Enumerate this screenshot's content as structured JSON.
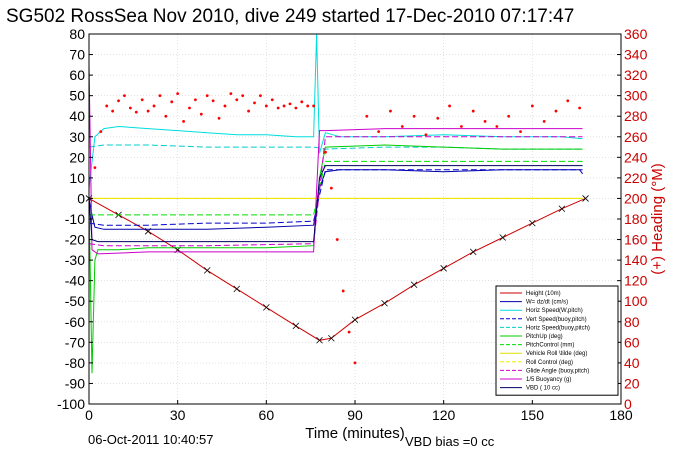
{
  "chart_data": {
    "type": "line",
    "title": "SG502 RossSea Nov 2010, dive 249 started 17-Dec-2010 07:17:47",
    "xlabel": "Time (minutes)",
    "ylabel_right": "(+) Heading (°M)",
    "footer_left": "06-Oct-2011 10:40:57",
    "footer_right": "VBD bias =0 cc",
    "xlim": [
      0,
      180
    ],
    "ylim_left": [
      -100,
      80
    ],
    "ylim_right": [
      0,
      360
    ],
    "x_ticks": [
      0,
      30,
      60,
      90,
      120,
      150,
      180
    ],
    "y_left_ticks": [
      80,
      70,
      60,
      50,
      40,
      30,
      20,
      10,
      0,
      -10,
      -20,
      -30,
      -40,
      -50,
      -60,
      -70,
      -80,
      -90,
      -100
    ],
    "y_right_ticks": [
      360,
      340,
      320,
      300,
      280,
      260,
      240,
      220,
      200,
      180,
      160,
      140,
      120,
      100,
      80,
      60,
      40,
      20,
      0
    ],
    "legend_position": "bottom-right",
    "colors": {
      "height": "#cc0000",
      "w": "#0000aa",
      "horiz_speed": "#00dddd",
      "vert_speed_buoy": "#0000cc",
      "horiz_speed_buoy": "#00cccc",
      "pitch_up": "#00cc00",
      "pitch_control": "#00dd00",
      "vehicle_roll": "#dddd00",
      "roll_control": "#eeee00",
      "glide_angle": "#cc00cc",
      "buoyancy": "#cc00cc",
      "vbd": "#000066",
      "heading": "#ff0000",
      "right_axis": "#cc0000"
    },
    "series": [
      {
        "key": "height",
        "name": "Height (10m)",
        "style": "solid",
        "markers": "x",
        "x": [
          0,
          10,
          20,
          30,
          40,
          50,
          60,
          70,
          78,
          82,
          90,
          100,
          110,
          120,
          130,
          140,
          150,
          160,
          168
        ],
        "y": [
          0,
          -8,
          -16,
          -25,
          -35,
          -44,
          -53,
          -62,
          -69,
          -68,
          -59,
          -51,
          -42,
          -34,
          -26,
          -19,
          -12,
          -5,
          0
        ]
      },
      {
        "key": "w",
        "name": "W= dz/dt (cm/s)",
        "style": "solid",
        "x": [
          0,
          1,
          2,
          5,
          20,
          40,
          60,
          76,
          78,
          80,
          85,
          100,
          120,
          140,
          160,
          166,
          167
        ],
        "y": [
          0,
          -8,
          -14,
          -15,
          -15,
          -15,
          -14,
          -13,
          5,
          13,
          14,
          14,
          13,
          14,
          14,
          14,
          12
        ]
      },
      {
        "key": "horiz_speed",
        "name": "Horiz Speed(W,pitch)",
        "style": "solid",
        "x": [
          0,
          2,
          5,
          10,
          20,
          30,
          40,
          50,
          60,
          70,
          76,
          77,
          78,
          80,
          85,
          100,
          120,
          140,
          160,
          167
        ],
        "y": [
          5,
          30,
          34,
          35,
          34,
          33,
          32,
          31,
          31,
          30,
          30,
          80,
          22,
          32,
          30,
          30,
          31,
          30,
          30,
          29
        ]
      },
      {
        "key": "vert_speed_buoy",
        "name": "Vert Speed(buoy,pitch)",
        "style": "dashed",
        "x": [
          0,
          5,
          20,
          40,
          60,
          76,
          80,
          100,
          120,
          140,
          167
        ],
        "y": [
          -12,
          -13,
          -13,
          -12,
          -12,
          -11,
          14,
          14,
          14,
          14,
          14
        ]
      },
      {
        "key": "horiz_speed_buoy",
        "name": "Horiz Speed(buoy,pitch)",
        "style": "dashed",
        "x": [
          0,
          5,
          20,
          40,
          60,
          76,
          80,
          100,
          120,
          140,
          167
        ],
        "y": [
          25,
          26,
          26,
          25,
          25,
          25,
          24,
          25,
          25,
          24,
          24
        ]
      },
      {
        "key": "pitch_up",
        "name": "PitchUp (deg)",
        "style": "solid",
        "x": [
          0,
          1,
          2,
          3,
          10,
          20,
          40,
          60,
          76,
          78,
          80,
          100,
          120,
          140,
          167
        ],
        "y": [
          0,
          -85,
          -30,
          -25,
          -25,
          -24,
          -24,
          -24,
          -23,
          10,
          25,
          26,
          25,
          24,
          24
        ]
      },
      {
        "key": "pitch_control",
        "name": "PitchControl (mm)",
        "style": "dashed",
        "x": [
          0,
          5,
          40,
          76,
          80,
          120,
          167
        ],
        "y": [
          -8,
          -8,
          -8,
          -8,
          18,
          18,
          18
        ]
      },
      {
        "key": "vehicle_roll",
        "name": "Vehicle Roll \\tilde (deg)",
        "style": "solid",
        "x": [
          0,
          3,
          10,
          20,
          30,
          40,
          50,
          60,
          70,
          76,
          80,
          90,
          100,
          110,
          120,
          130,
          140,
          150,
          160,
          167
        ],
        "y": [
          0,
          0,
          0,
          0,
          0,
          0,
          0,
          0,
          0,
          0,
          0,
          0,
          0,
          0,
          0,
          0,
          0,
          0,
          0,
          0
        ]
      },
      {
        "key": "roll_control",
        "name": "Roll Control (deg)",
        "style": "dashed",
        "x": [
          0,
          167
        ],
        "y": [
          0,
          0
        ]
      },
      {
        "key": "glide_angle",
        "name": "Glide Angle (buoy,pitch)",
        "style": "dashed",
        "x": [
          0,
          5,
          40,
          76,
          80,
          120,
          167
        ],
        "y": [
          -22,
          -23,
          -23,
          -22,
          30,
          30,
          30
        ]
      },
      {
        "key": "buoyancy",
        "name": "1/5 Buoyancy (g)",
        "style": "solid",
        "x": [
          0,
          1,
          3,
          20,
          40,
          60,
          76,
          78,
          80,
          100,
          120,
          140,
          167
        ],
        "y": [
          65,
          -25,
          -27,
          -26,
          -26,
          -26,
          -26,
          33,
          33,
          34,
          34,
          34,
          34
        ]
      },
      {
        "key": "vbd",
        "name": "VBD ( 10 cc)",
        "style": "solid",
        "x": [
          0,
          1,
          3,
          40,
          76,
          78,
          80,
          120,
          167
        ],
        "y": [
          0,
          -20,
          -21,
          -21,
          -21,
          10,
          16,
          16,
          16
        ]
      },
      {
        "key": "heading",
        "name": "Heading",
        "style": "points",
        "axis": "right",
        "x": [
          2,
          4,
          6,
          8,
          10,
          12,
          14,
          16,
          18,
          20,
          22,
          24,
          26,
          28,
          30,
          32,
          34,
          36,
          38,
          40,
          42,
          44,
          46,
          48,
          50,
          52,
          54,
          56,
          58,
          60,
          62,
          64,
          66,
          68,
          70,
          72,
          74,
          76,
          80,
          82,
          84,
          86,
          88,
          90,
          94,
          98,
          102,
          106,
          110,
          114,
          118,
          122,
          126,
          130,
          134,
          138,
          142,
          146,
          150,
          154,
          158,
          162,
          166
        ],
        "y": [
          230,
          265,
          290,
          285,
          295,
          300,
          288,
          284,
          296,
          285,
          290,
          300,
          280,
          294,
          302,
          275,
          288,
          296,
          282,
          300,
          295,
          278,
          290,
          302,
          296,
          300,
          285,
          293,
          300,
          290,
          296,
          288,
          290,
          292,
          288,
          294,
          290,
          290,
          245,
          210,
          160,
          110,
          70,
          40,
          280,
          265,
          285,
          270,
          280,
          262,
          278,
          290,
          270,
          285,
          275,
          270,
          280,
          265,
          290,
          275,
          285,
          295,
          288
        ]
      }
    ]
  }
}
